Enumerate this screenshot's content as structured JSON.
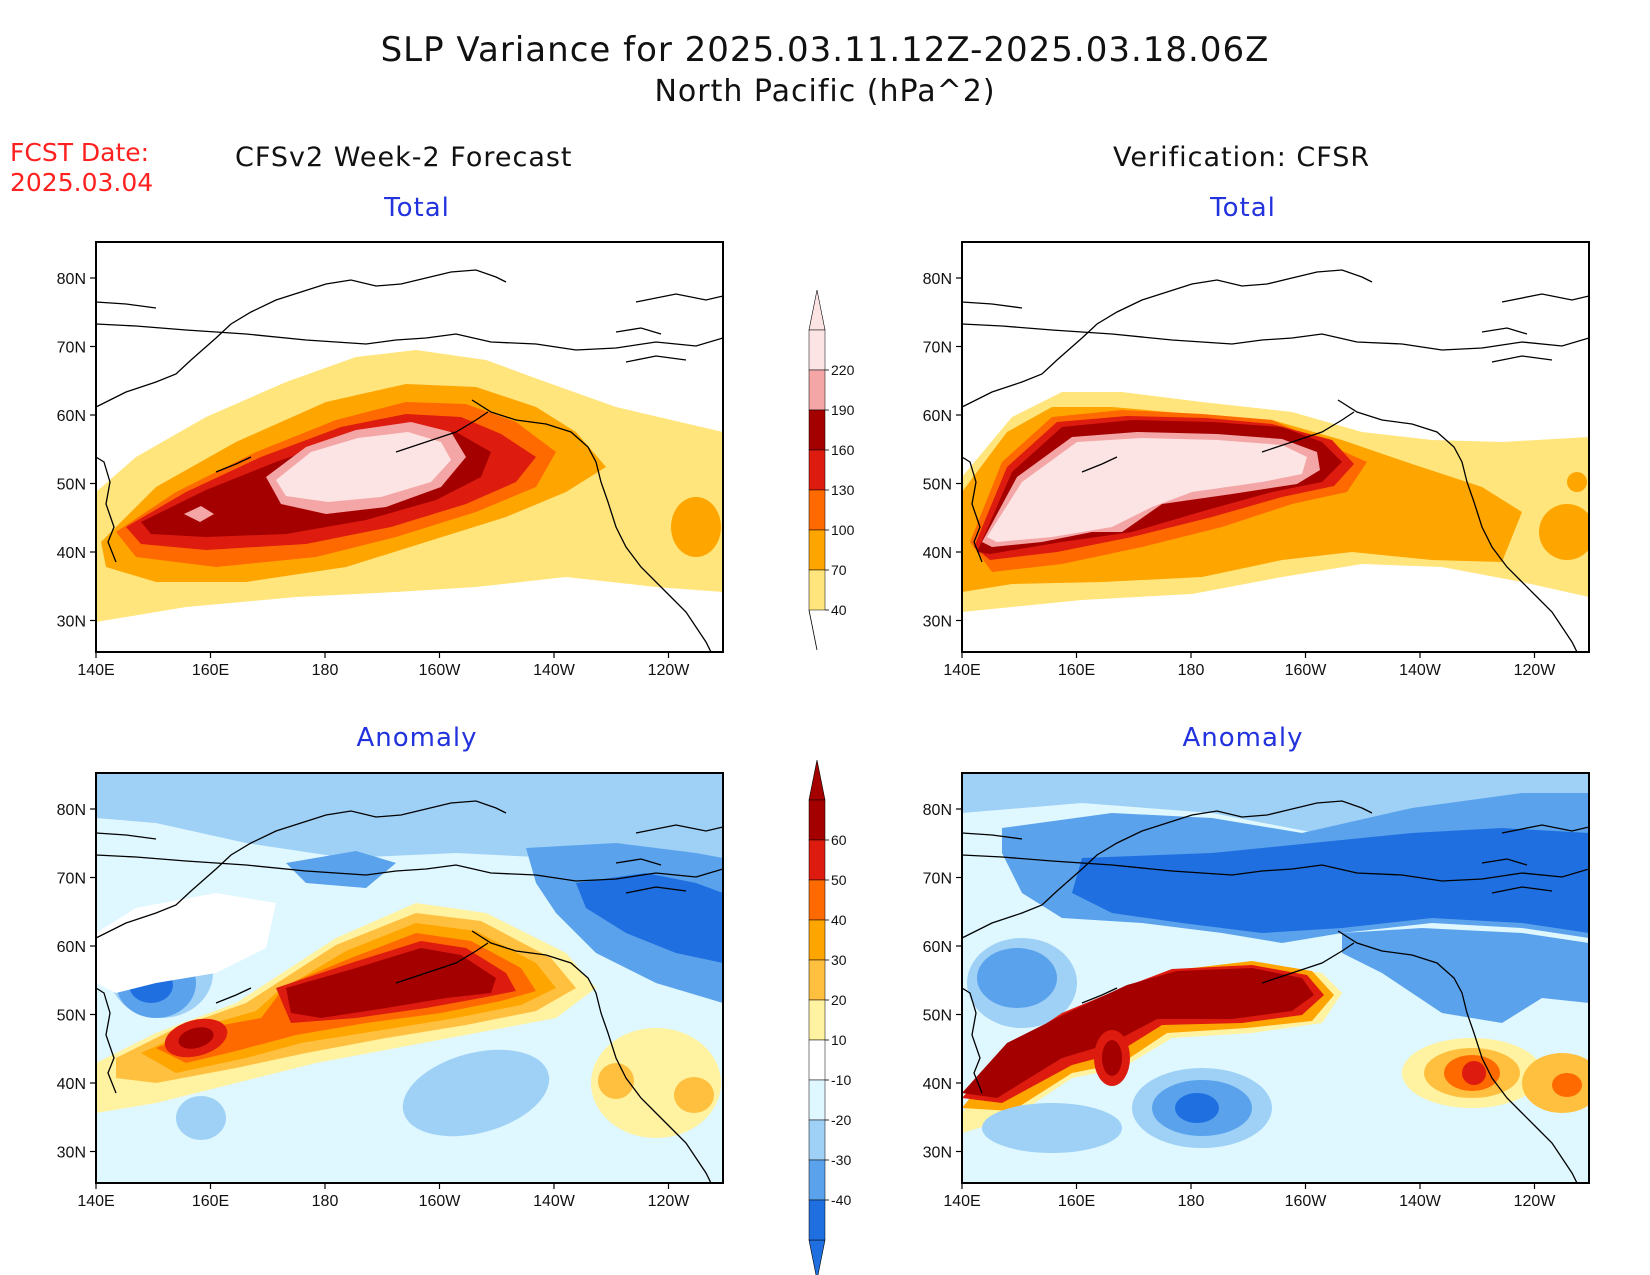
{
  "title_line1": "SLP Variance for 2025.03.11.12Z-2025.03.18.06Z",
  "title_line2": "North Pacific (hPa^2)",
  "fcst_label": "FCST Date:",
  "fcst_date": "2025.03.04",
  "columns": {
    "left": "CFSv2 Week-2 Forecast",
    "right": "Verification: CFSR"
  },
  "panel_titles": {
    "top": "Total",
    "bottom": "Anomaly"
  },
  "axes": {
    "lat_ticks": [
      "80N",
      "70N",
      "60N",
      "50N",
      "40N",
      "30N"
    ],
    "lon_ticks": [
      "140E",
      "160E",
      "180",
      "160W",
      "140W",
      "120W"
    ]
  },
  "colorbars": {
    "total": {
      "levels": [
        "220",
        "190",
        "160",
        "130",
        "100",
        "70",
        "40"
      ],
      "colors": [
        "#fde4e4",
        "#f4a6a6",
        "#a50000",
        "#dd1b0f",
        "#ff6a00",
        "#ffa500",
        "#ffe57c"
      ]
    },
    "anomaly": {
      "levels": [
        "60",
        "50",
        "40",
        "30",
        "20",
        "10",
        "-10",
        "-20",
        "-30",
        "-40"
      ],
      "colors": [
        "#a50000",
        "#dd1b0f",
        "#ff6a00",
        "#ffa500",
        "#ffc040",
        "#fff2a0",
        "#ffffff",
        "#dff7ff",
        "#9fd1f7",
        "#5aa2ec",
        "#1f6fe0"
      ]
    }
  }
}
